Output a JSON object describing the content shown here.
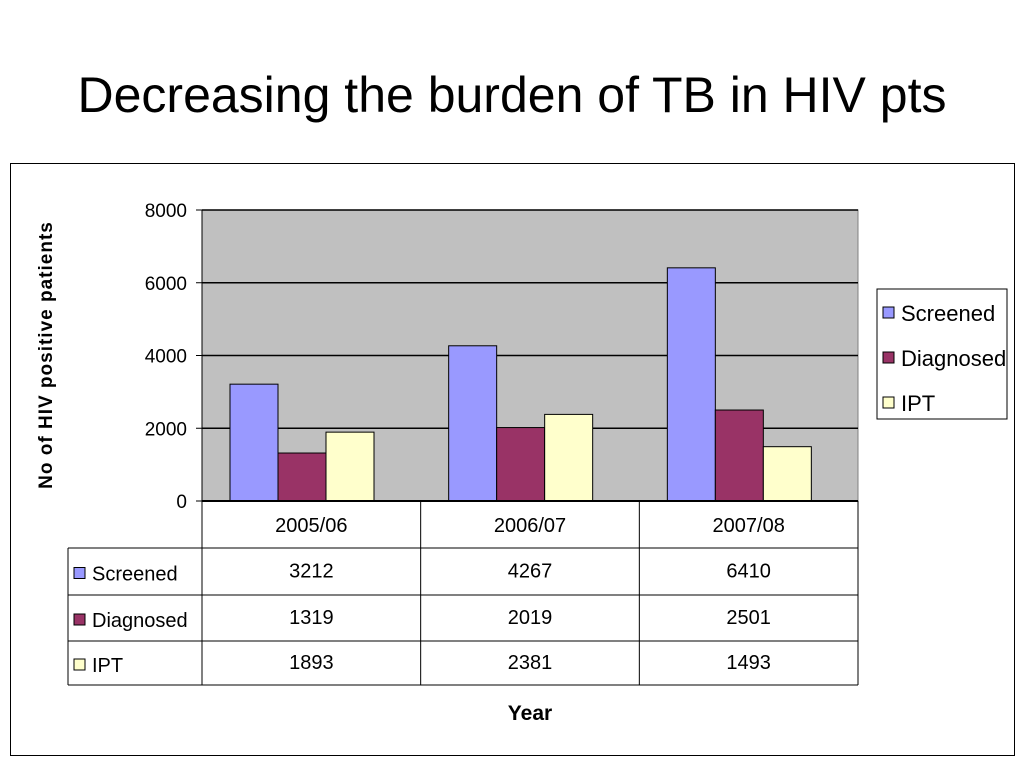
{
  "slide": {
    "title": "Decreasing the burden of TB in HIV pts"
  },
  "chart_data": {
    "type": "bar",
    "title": "",
    "xlabel": "Year",
    "ylabel": "No of HIV positive patients",
    "categories": [
      "2005/06",
      "2006/07",
      "2007/08"
    ],
    "series": [
      {
        "name": "Screened",
        "values": [
          3212,
          4267,
          6410
        ],
        "color": "#9999ff"
      },
      {
        "name": "Diagnosed",
        "values": [
          1319,
          2019,
          2501
        ],
        "color": "#993366"
      },
      {
        "name": "IPT",
        "values": [
          1893,
          2381,
          1493
        ],
        "color": "#ffffcc"
      }
    ],
    "ylim": [
      0,
      8000
    ],
    "yticks": [
      0,
      2000,
      4000,
      6000,
      8000
    ],
    "grid": true,
    "plot_background": "#c0c0c0",
    "legend_position": "right",
    "data_table": true
  }
}
